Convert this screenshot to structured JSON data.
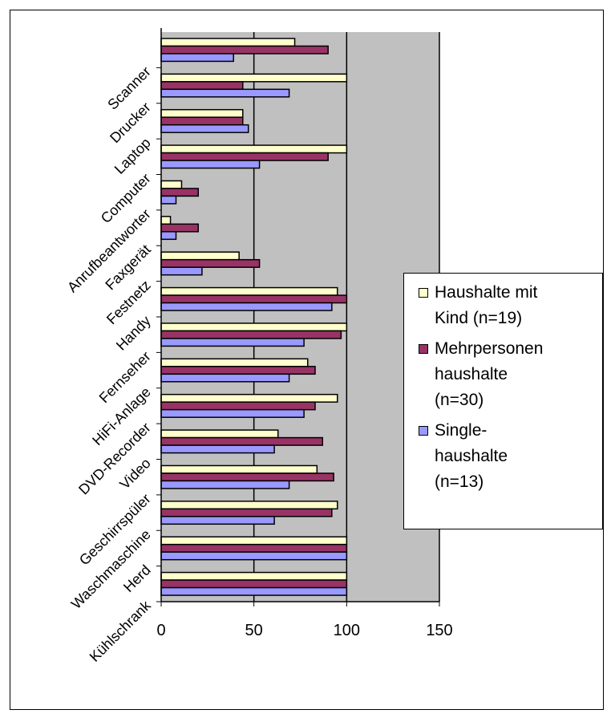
{
  "chart_data": {
    "type": "bar",
    "orientation": "horizontal",
    "categories": [
      "Kühlschrank",
      "Herd",
      "Waschmaschine",
      "Geschirrspüler",
      "Video",
      "DVD-Recorder",
      "HiFi-Anlage",
      "Fernseher",
      "Handy",
      "Festnetz",
      "Faxgerät",
      "Anrufbeantworter",
      "Computer",
      "Laptop",
      "Drucker",
      "Scanner"
    ],
    "series": [
      {
        "name": "Haushalte mit\nKind (n=19)",
        "color": "#FFFFCC",
        "values": [
          100,
          100,
          95,
          84,
          63,
          95,
          79,
          100,
          95,
          42,
          5,
          11,
          100,
          44,
          100,
          72
        ]
      },
      {
        "name": "Mehrpersonen\nhaushalte\n(n=30)",
        "color": "#993366",
        "values": [
          100,
          100,
          92,
          93,
          87,
          83,
          83,
          97,
          100,
          53,
          20,
          20,
          90,
          44,
          44,
          90
        ]
      },
      {
        "name": "Single-\nhaushalte\n(n=13)",
        "color": "#9999FF",
        "values": [
          100,
          100,
          61,
          69,
          61,
          77,
          69,
          77,
          92,
          22,
          8,
          8,
          53,
          47,
          69,
          39
        ]
      }
    ],
    "xlim": [
      0,
      150
    ],
    "xticks": [
      "0",
      "50",
      "100",
      "150"
    ],
    "grid": true,
    "plot_background": "#C0C0C0",
    "legend_position": "right"
  }
}
